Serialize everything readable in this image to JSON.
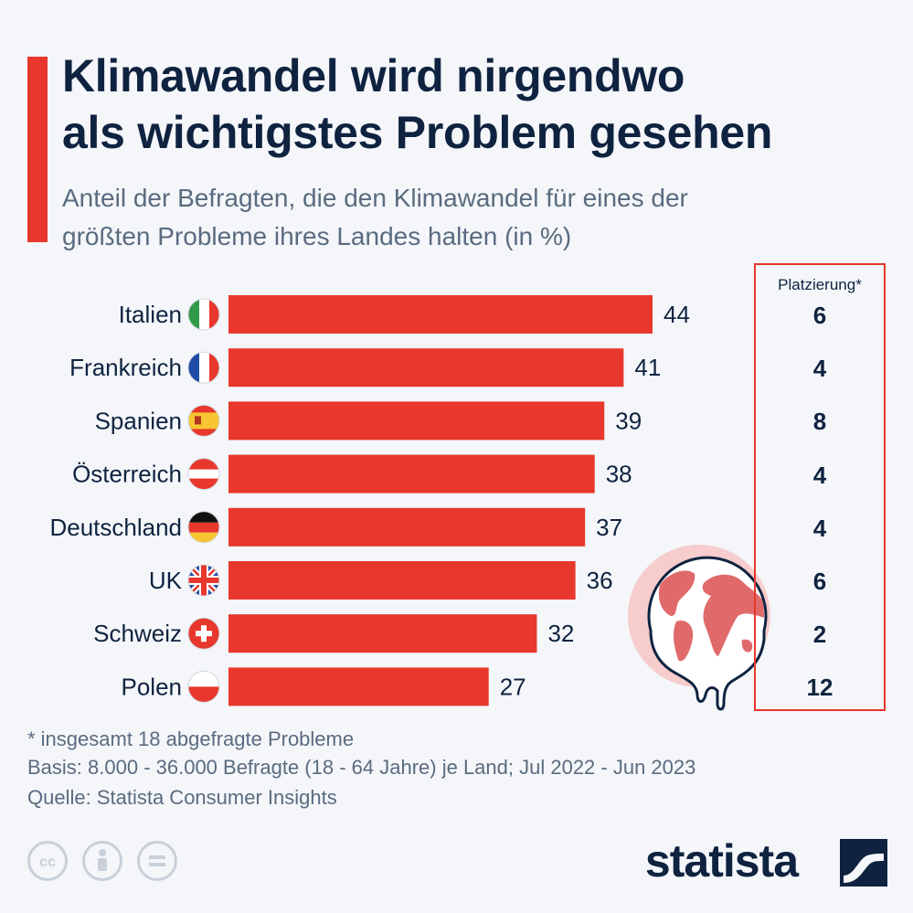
{
  "header": {
    "title_line1": "Klimawandel wird nirgendwo",
    "title_line2": "als wichtigstes Problem gesehen",
    "subtitle_line1": "Anteil der Befragten, die den Klimawandel für eines der",
    "subtitle_line2": "größten Probleme ihres Landes halten (in %)"
  },
  "colors": {
    "accent": "#e8372c",
    "navy": "#0f2340",
    "muted": "#5a6b80",
    "background": "#f4f6f9"
  },
  "chart_data": {
    "type": "bar",
    "orientation": "horizontal",
    "categories": [
      "Italien",
      "Frankreich",
      "Spanien",
      "Österreich",
      "Deutschland",
      "UK",
      "Schweiz",
      "Polen"
    ],
    "flag_icons": [
      "italy-flag-icon",
      "france-flag-icon",
      "spain-flag-icon",
      "austria-flag-icon",
      "germany-flag-icon",
      "uk-flag-icon",
      "switzerland-flag-icon",
      "poland-flag-icon"
    ],
    "values": [
      44,
      41,
      39,
      38,
      37,
      36,
      32,
      27
    ],
    "bar_color": "#e8372c",
    "xlim": [
      0,
      50
    ],
    "grid": false
  },
  "ranking": {
    "header": "Platzierung*",
    "values": [
      "6",
      "4",
      "8",
      "4",
      "4",
      "6",
      "2",
      "12"
    ]
  },
  "illustration": {
    "icon": "melting-globe-icon"
  },
  "footer": {
    "note": "* insgesamt 18 abgefragte Probleme",
    "basis": "Basis: 8.000 - 36.000 Befragte (18 - 64 Jahre) je Land; Jul 2022 - Jun 2023",
    "source": "Quelle: Statista Consumer Insights",
    "brand": "statista",
    "license_icons": [
      "cc-icon",
      "attribution-icon",
      "no-derivatives-icon"
    ]
  }
}
